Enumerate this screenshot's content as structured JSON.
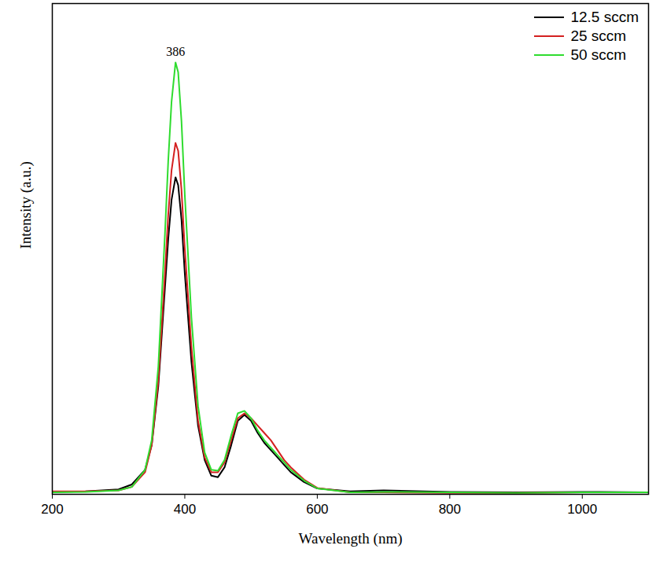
{
  "chart_data": {
    "type": "line",
    "xlabel": "Wavelength (nm)",
    "ylabel": "Intensity (a.u.)",
    "x": [
      200,
      250,
      300,
      320,
      340,
      350,
      360,
      370,
      375,
      380,
      386,
      390,
      395,
      400,
      410,
      420,
      430,
      440,
      450,
      460,
      470,
      480,
      490,
      500,
      510,
      520,
      530,
      540,
      550,
      560,
      580,
      600,
      650,
      700,
      800,
      900,
      1000,
      1100
    ],
    "series": [
      {
        "name": "12.5 sccm",
        "color": "#000000",
        "line_style": "solid",
        "values": [
          0.5,
          0.6,
          1,
          2,
          5,
          10,
          22,
          42,
          52,
          60,
          64.6,
          63,
          56,
          45,
          27,
          14,
          7,
          3.8,
          3.5,
          5.5,
          10,
          15,
          16.2,
          15,
          12.5,
          10.5,
          9,
          7.5,
          6,
          4.5,
          2.5,
          1.2,
          0.6,
          0.8,
          0.5,
          0.4,
          0.5,
          0.4
        ]
      },
      {
        "name": "25 sccm",
        "color": "#d42020",
        "line_style": "solid",
        "values": [
          0.6,
          0.6,
          0.8,
          1.5,
          4.5,
          10,
          23,
          45,
          57,
          66,
          71.6,
          70,
          62,
          50,
          30,
          15,
          7.5,
          4.5,
          4.5,
          6.5,
          11,
          15.5,
          16.5,
          15.5,
          14,
          12.5,
          11,
          9,
          7,
          5.5,
          3,
          1.3,
          0.4,
          0.4,
          0.3,
          0.3,
          0.4,
          0.4
        ]
      },
      {
        "name": "50 sccm",
        "color": "#2fdc2f",
        "line_style": "solid",
        "values": [
          0.4,
          0.5,
          0.8,
          1.5,
          5,
          11,
          26,
          53,
          68,
          80,
          88,
          86,
          76,
          61,
          36,
          18,
          8.5,
          5,
          4.8,
          7,
          12,
          16.5,
          17,
          15.5,
          13,
          11,
          9.5,
          8,
          6.5,
          5,
          2.8,
          1.2,
          0.4,
          0.5,
          0.4,
          0.3,
          0.4,
          0.4
        ]
      }
    ],
    "annotations": [
      {
        "text": "386",
        "x": 386,
        "y": 88
      }
    ],
    "xlim": [
      200,
      1100
    ],
    "xticks": [
      200,
      400,
      600,
      800,
      1000
    ],
    "ylim": [
      0,
      100
    ],
    "yticks": [],
    "tick_labels": "x",
    "legend": "upper right",
    "grid": false
  }
}
